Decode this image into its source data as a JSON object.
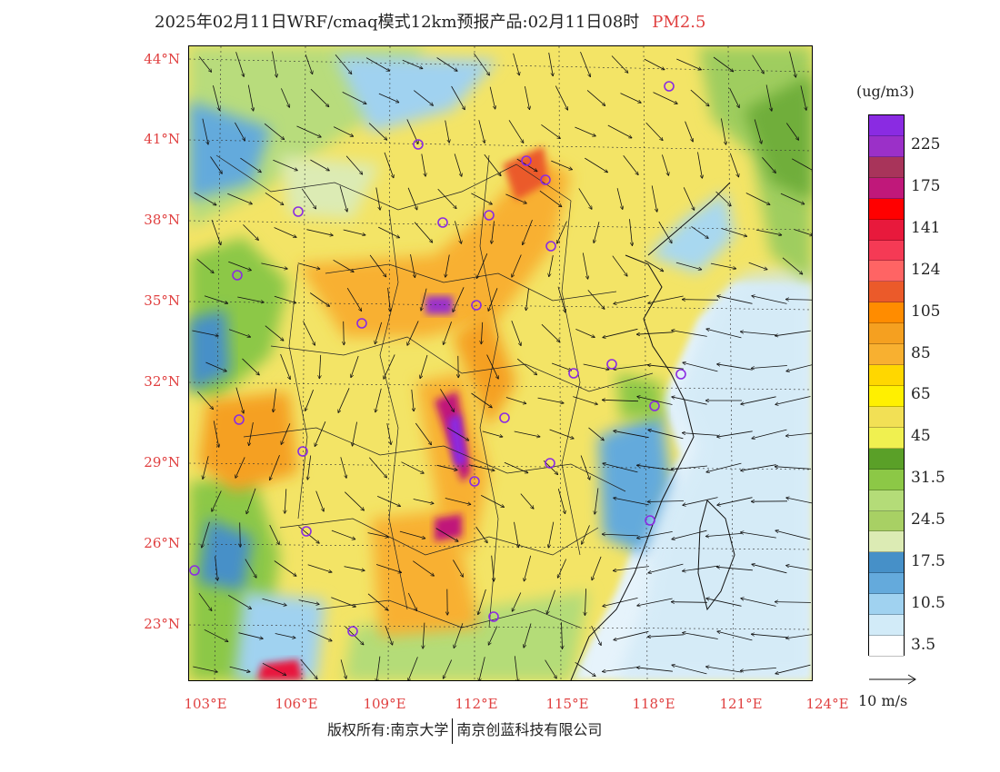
{
  "title": {
    "text": "2025年02月11日WRF/cmaq模式12km预报产品:02月11日08时",
    "pollutant": "PM2.5"
  },
  "colors": {
    "label_red": "#e04040",
    "wind_arrow": "#111111",
    "city_marker": "#8a2be2",
    "ocean": "#e8f4fb"
  },
  "latitude_labels": [
    "44°N",
    "41°N",
    "38°N",
    "35°N",
    "32°N",
    "29°N",
    "26°N",
    "23°N"
  ],
  "longitude_labels": [
    "103°E",
    "106°E",
    "109°E",
    "112°E",
    "115°E",
    "118°E",
    "121°E",
    "124°E"
  ],
  "legend": {
    "unit": "(ug/m3)",
    "bins": [
      {
        "color": "#8a2be2",
        "label": ""
      },
      {
        "color": "#9b30c8",
        "label": "225"
      },
      {
        "color": "#a8345a",
        "label": ""
      },
      {
        "color": "#c0187a",
        "label": "175"
      },
      {
        "color": "#ff0000",
        "label": ""
      },
      {
        "color": "#e8193c",
        "label": "141"
      },
      {
        "color": "#f53a55",
        "label": ""
      },
      {
        "color": "#ff6464",
        "label": "124"
      },
      {
        "color": "#eb5a2a",
        "label": ""
      },
      {
        "color": "#ff8c00",
        "label": "105"
      },
      {
        "color": "#f5a020",
        "label": ""
      },
      {
        "color": "#f8b030",
        "label": "85"
      },
      {
        "color": "#ffd700",
        "label": ""
      },
      {
        "color": "#fff000",
        "label": "65"
      },
      {
        "color": "#f2e055",
        "label": ""
      },
      {
        "color": "#f0f050",
        "label": "45"
      },
      {
        "color": "#5aa028",
        "label": ""
      },
      {
        "color": "#8cc846",
        "label": "31.5"
      },
      {
        "color": "#b4dc78",
        "label": ""
      },
      {
        "color": "#a8d064",
        "label": "24.5"
      },
      {
        "color": "#dcebb4",
        "label": ""
      },
      {
        "color": "#4690c8",
        "label": "17.5"
      },
      {
        "color": "#64aadc",
        "label": ""
      },
      {
        "color": "#a0d2f0",
        "label": "10.5"
      },
      {
        "color": "#d2ebf8",
        "label": ""
      },
      {
        "color": "#ffffff",
        "label": "3.5"
      }
    ]
  },
  "wind_reference": {
    "label": "10 m/s"
  },
  "copyright": {
    "left": "版权所有:南京大学",
    "right": "南京创蓝科技有限公司"
  }
}
